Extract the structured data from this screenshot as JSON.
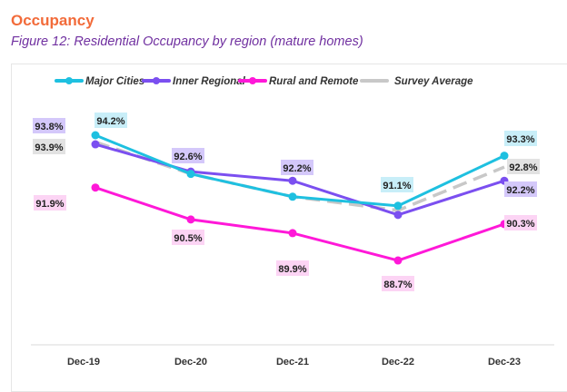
{
  "heading": "Occupancy",
  "caption": "Figure 12: Residential Occupancy by region (mature homes)",
  "chart_data": {
    "type": "line",
    "title": "",
    "xlabel": "",
    "ylabel": "",
    "categories": [
      "Dec-19",
      "Dec-20",
      "Dec-21",
      "Dec-22",
      "Dec-23"
    ],
    "ylim": [
      86,
      95
    ],
    "grid": false,
    "legend_position": "top",
    "series": [
      {
        "name": "Major Cities",
        "color": "#1ec0e0",
        "label_bg": "#c8eef8",
        "dashed": false,
        "values": [
          94.2,
          92.5,
          91.5,
          91.1,
          93.3
        ],
        "labels": [
          "94.2%",
          null,
          null,
          "91.1%",
          "93.3%"
        ]
      },
      {
        "name": "Inner Regional",
        "color": "#7b4ff0",
        "label_bg": "#d4c8fa",
        "dashed": false,
        "values": [
          93.8,
          92.6,
          92.2,
          90.7,
          92.2
        ],
        "labels": [
          "93.8%",
          "92.6%",
          "92.2%",
          null,
          "92.2%"
        ]
      },
      {
        "name": "Rural and Remote",
        "color": "#ff18d8",
        "label_bg": "#fcd4f4",
        "dashed": false,
        "values": [
          91.9,
          90.5,
          89.9,
          88.7,
          90.3
        ],
        "labels": [
          "91.9%",
          "90.5%",
          "89.9%",
          "88.7%",
          "90.3%"
        ]
      },
      {
        "name": "Survey Average",
        "color": "#c8c8c8",
        "label_bg": "#e2e2e2",
        "dashed": true,
        "values": [
          93.9,
          92.5,
          91.5,
          90.9,
          92.8
        ],
        "labels": [
          "93.9%",
          null,
          null,
          null,
          "92.8%"
        ]
      }
    ]
  }
}
